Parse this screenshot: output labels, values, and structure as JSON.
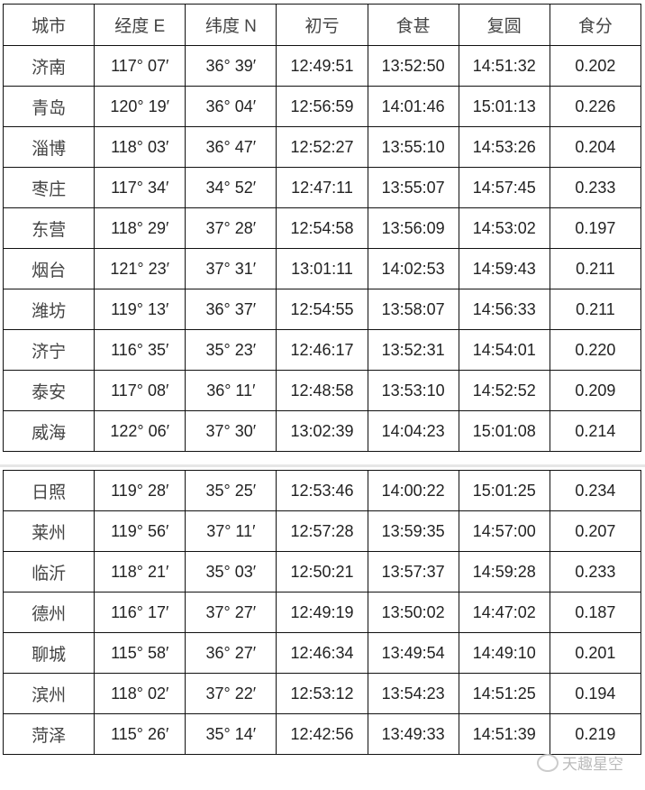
{
  "headers": [
    "城市",
    "经度 E",
    "纬度 N",
    "初亏",
    "食甚",
    "复圆",
    "食分"
  ],
  "table1": [
    [
      "济南",
      "117° 07′",
      "36° 39′",
      "12:49:51",
      "13:52:50",
      "14:51:32",
      "0.202"
    ],
    [
      "青岛",
      "120° 19′",
      "36° 04′",
      "12:56:59",
      "14:01:46",
      "15:01:13",
      "0.226"
    ],
    [
      "淄博",
      "118° 03′",
      "36° 47′",
      "12:52:27",
      "13:55:10",
      "14:53:26",
      "0.204"
    ],
    [
      "枣庄",
      "117° 34′",
      "34° 52′",
      "12:47:11",
      "13:55:07",
      "14:57:45",
      "0.233"
    ],
    [
      "东营",
      "118° 29′",
      "37° 28′",
      "12:54:58",
      "13:56:09",
      "14:53:02",
      "0.197"
    ],
    [
      "烟台",
      "121° 23′",
      "37° 31′",
      "13:01:11",
      "14:02:53",
      "14:59:43",
      "0.211"
    ],
    [
      "潍坊",
      "119° 13′",
      "36° 37′",
      "12:54:55",
      "13:58:07",
      "14:56:33",
      "0.211"
    ],
    [
      "济宁",
      "116° 35′",
      "35° 23′",
      "12:46:17",
      "13:52:31",
      "14:54:01",
      "0.220"
    ],
    [
      "泰安",
      "117° 08′",
      "36° 11′",
      "12:48:58",
      "13:53:10",
      "14:52:52",
      "0.209"
    ],
    [
      "威海",
      "122° 06′",
      "37° 30′",
      "13:02:39",
      "14:04:23",
      "15:01:08",
      "0.214"
    ]
  ],
  "table2": [
    [
      "日照",
      "119° 28′",
      "35° 25′",
      "12:53:46",
      "14:00:22",
      "15:01:25",
      "0.234"
    ],
    [
      "莱州",
      "119° 56′",
      "37° 11′",
      "12:57:28",
      "13:59:35",
      "14:57:00",
      "0.207"
    ],
    [
      "临沂",
      "118° 21′",
      "35° 03′",
      "12:50:21",
      "13:57:37",
      "14:59:28",
      "0.233"
    ],
    [
      "德州",
      "116° 17′",
      "37° 27′",
      "12:49:19",
      "13:50:02",
      "14:47:02",
      "0.187"
    ],
    [
      "聊城",
      "115° 58′",
      "36° 27′",
      "12:46:34",
      "13:49:54",
      "14:49:10",
      "0.201"
    ],
    [
      "滨州",
      "118° 02′",
      "37° 22′",
      "12:53:12",
      "13:54:23",
      "14:51:25",
      "0.194"
    ],
    [
      "菏泽",
      "115° 26′",
      "35° 14′",
      "12:42:56",
      "13:49:33",
      "14:51:39",
      "0.219"
    ]
  ],
  "watermark": {
    "text": "天趣星空",
    "icon": "wechat-icon"
  }
}
